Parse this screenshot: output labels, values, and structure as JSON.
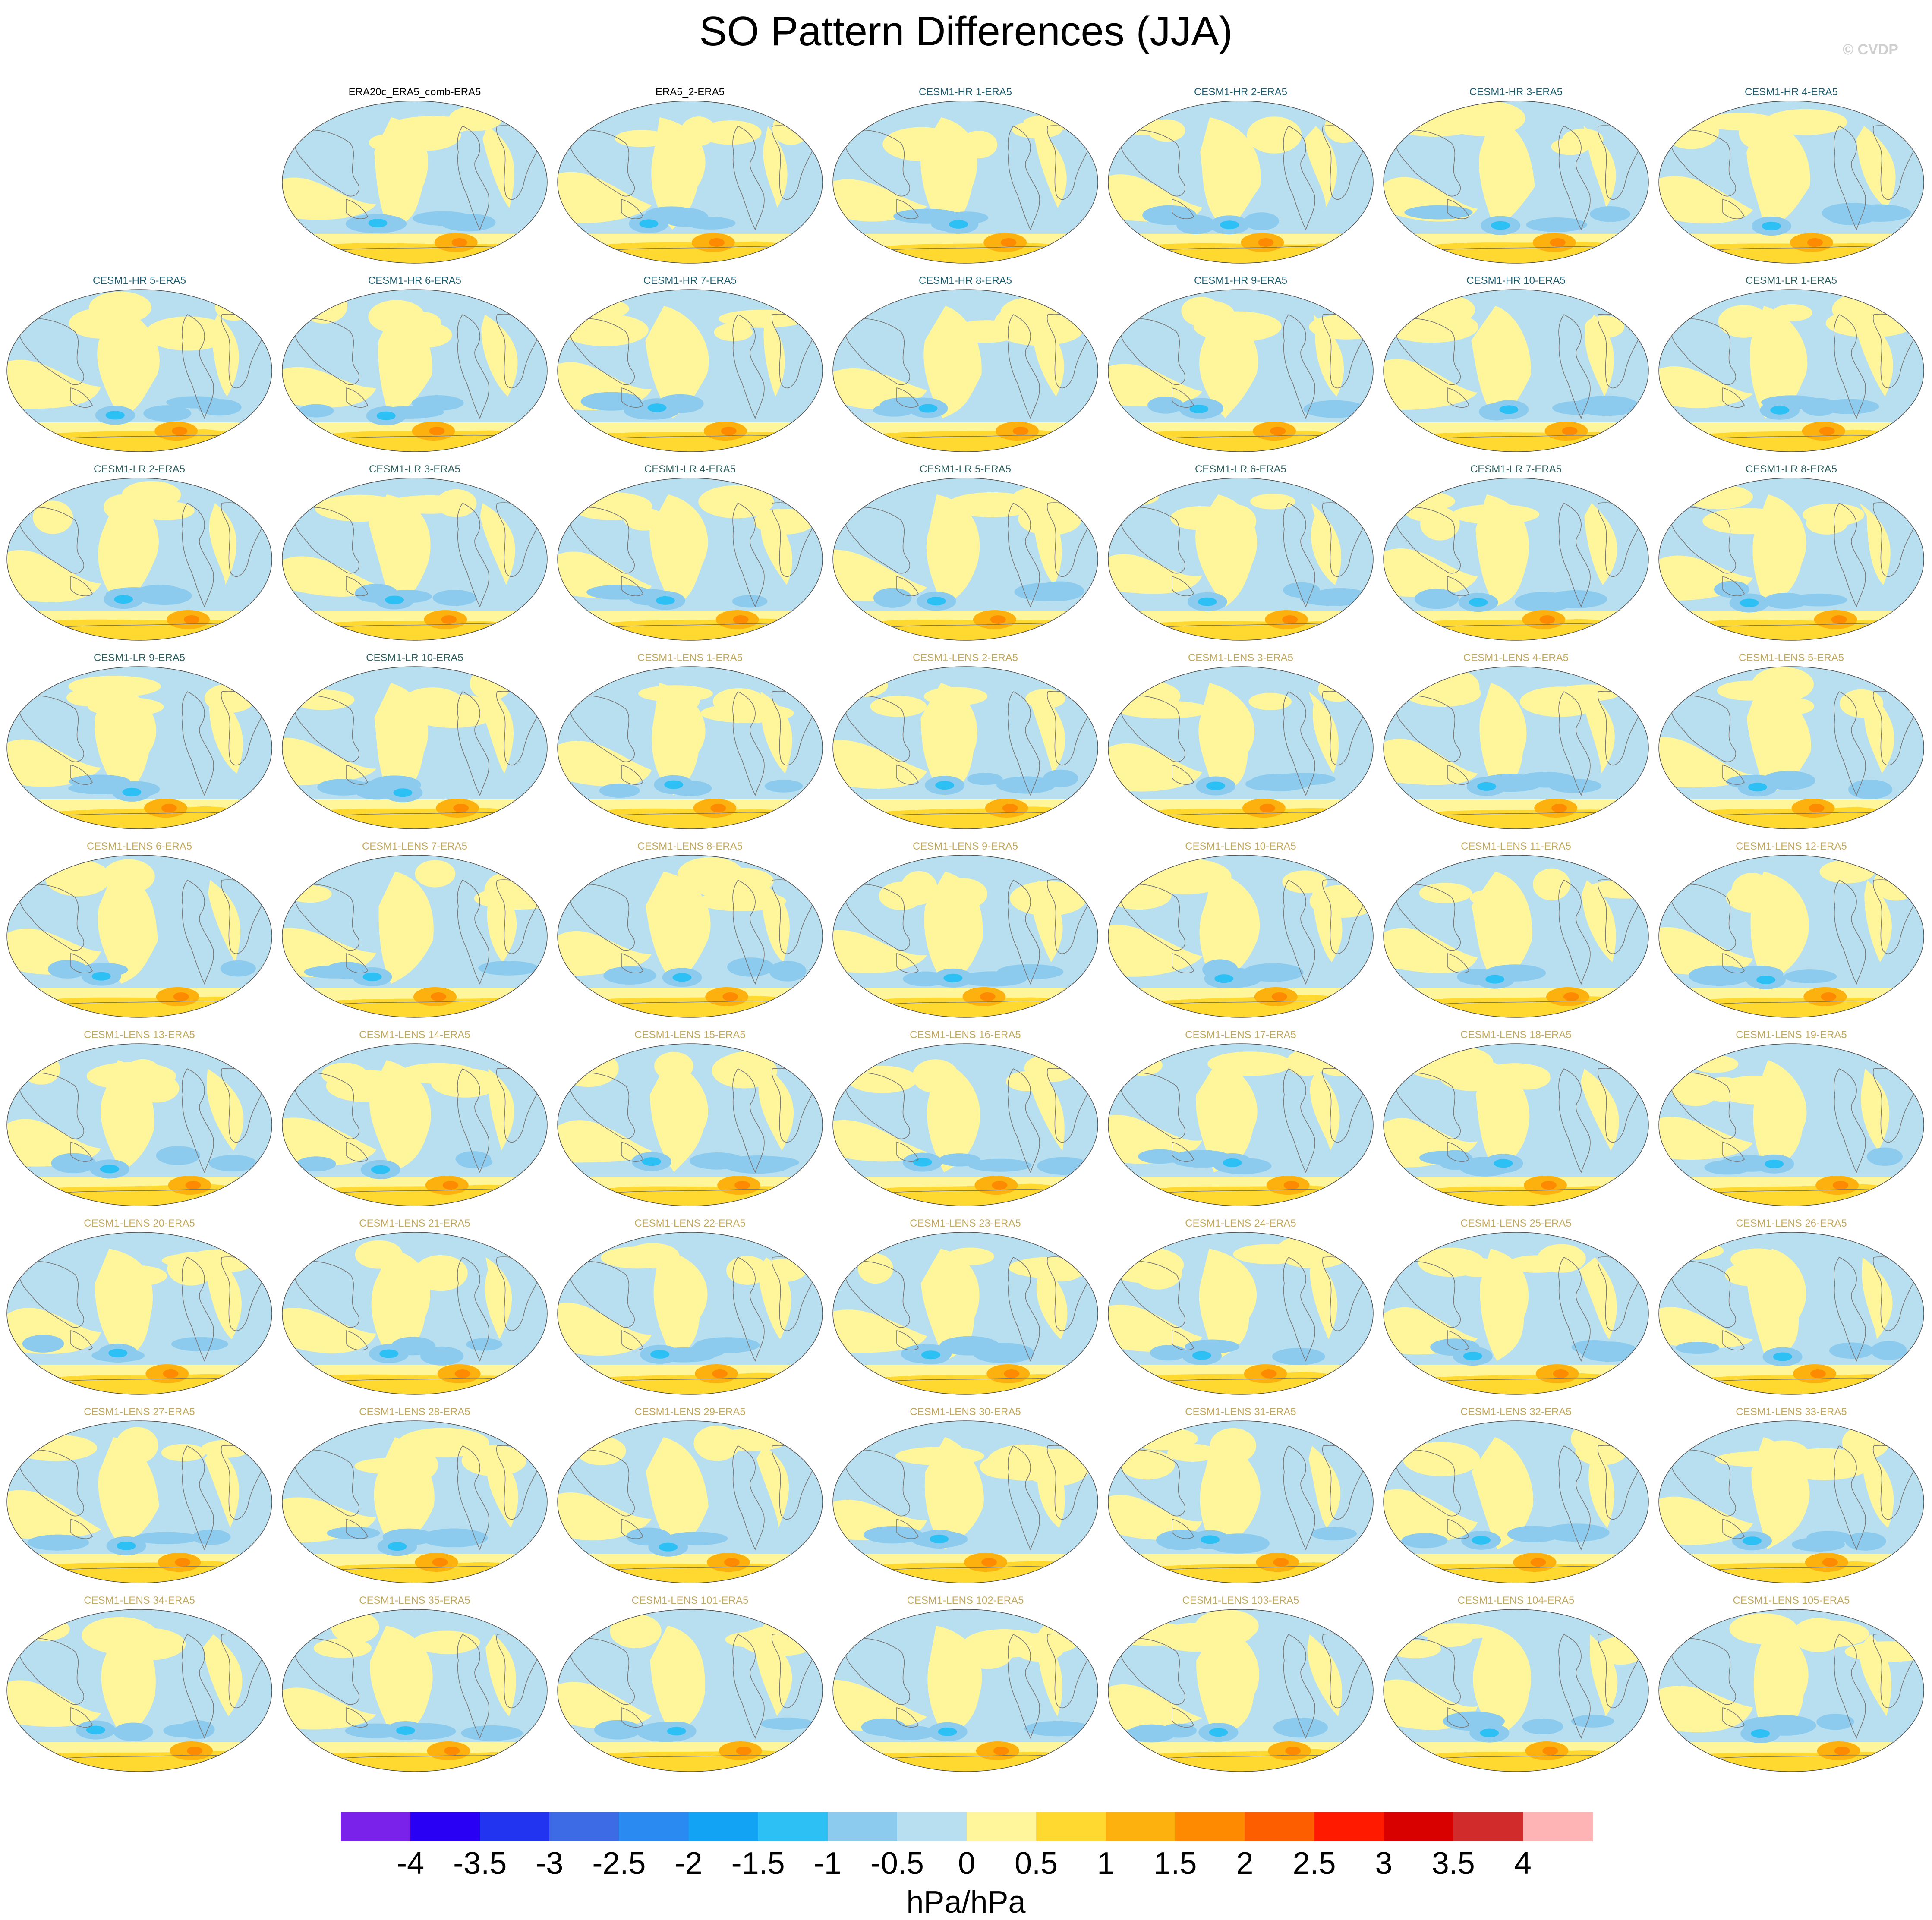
{
  "title": "SO Pattern Differences (JJA)",
  "credit": "© CVDP",
  "units": "hPa/hPa",
  "title_colors": {
    "obs": "#000000",
    "hr": "#1c5a6e",
    "lr": "#2d5e5e",
    "lens": "#c2a85c"
  },
  "panels": [
    {
      "label": "ERA20c_ERA5_comb-ERA5",
      "group": "obs"
    },
    {
      "label": "ERA5_2-ERA5",
      "group": "obs"
    },
    {
      "label": "CESM1-HR 1-ERA5",
      "group": "hr"
    },
    {
      "label": "CESM1-HR 2-ERA5",
      "group": "hr"
    },
    {
      "label": "CESM1-HR 3-ERA5",
      "group": "hr"
    },
    {
      "label": "CESM1-HR 4-ERA5",
      "group": "hr"
    },
    {
      "label": "CESM1-HR 5-ERA5",
      "group": "hr"
    },
    {
      "label": "CESM1-HR 6-ERA5",
      "group": "hr"
    },
    {
      "label": "CESM1-HR 7-ERA5",
      "group": "hr"
    },
    {
      "label": "CESM1-HR 8-ERA5",
      "group": "hr"
    },
    {
      "label": "CESM1-HR 9-ERA5",
      "group": "hr"
    },
    {
      "label": "CESM1-HR 10-ERA5",
      "group": "hr"
    },
    {
      "label": "CESM1-LR 1-ERA5",
      "group": "lr"
    },
    {
      "label": "CESM1-LR 2-ERA5",
      "group": "lr"
    },
    {
      "label": "CESM1-LR 3-ERA5",
      "group": "lr"
    },
    {
      "label": "CESM1-LR 4-ERA5",
      "group": "lr"
    },
    {
      "label": "CESM1-LR 5-ERA5",
      "group": "lr"
    },
    {
      "label": "CESM1-LR 6-ERA5",
      "group": "lr"
    },
    {
      "label": "CESM1-LR 7-ERA5",
      "group": "lr"
    },
    {
      "label": "CESM1-LR 8-ERA5",
      "group": "lr"
    },
    {
      "label": "CESM1-LR 9-ERA5",
      "group": "lr"
    },
    {
      "label": "CESM1-LR 10-ERA5",
      "group": "lr"
    },
    {
      "label": "CESM1-LENS 1-ERA5",
      "group": "lens"
    },
    {
      "label": "CESM1-LENS 2-ERA5",
      "group": "lens"
    },
    {
      "label": "CESM1-LENS 3-ERA5",
      "group": "lens"
    },
    {
      "label": "CESM1-LENS 4-ERA5",
      "group": "lens"
    },
    {
      "label": "CESM1-LENS 5-ERA5",
      "group": "lens"
    },
    {
      "label": "CESM1-LENS 6-ERA5",
      "group": "lens"
    },
    {
      "label": "CESM1-LENS 7-ERA5",
      "group": "lens"
    },
    {
      "label": "CESM1-LENS 8-ERA5",
      "group": "lens"
    },
    {
      "label": "CESM1-LENS 9-ERA5",
      "group": "lens"
    },
    {
      "label": "CESM1-LENS 10-ERA5",
      "group": "lens"
    },
    {
      "label": "CESM1-LENS 11-ERA5",
      "group": "lens"
    },
    {
      "label": "CESM1-LENS 12-ERA5",
      "group": "lens"
    },
    {
      "label": "CESM1-LENS 13-ERA5",
      "group": "lens"
    },
    {
      "label": "CESM1-LENS 14-ERA5",
      "group": "lens"
    },
    {
      "label": "CESM1-LENS 15-ERA5",
      "group": "lens"
    },
    {
      "label": "CESM1-LENS 16-ERA5",
      "group": "lens"
    },
    {
      "label": "CESM1-LENS 17-ERA5",
      "group": "lens"
    },
    {
      "label": "CESM1-LENS 18-ERA5",
      "group": "lens"
    },
    {
      "label": "CESM1-LENS 19-ERA5",
      "group": "lens"
    },
    {
      "label": "CESM1-LENS 20-ERA5",
      "group": "lens"
    },
    {
      "label": "CESM1-LENS 21-ERA5",
      "group": "lens"
    },
    {
      "label": "CESM1-LENS 22-ERA5",
      "group": "lens"
    },
    {
      "label": "CESM1-LENS 23-ERA5",
      "group": "lens"
    },
    {
      "label": "CESM1-LENS 24-ERA5",
      "group": "lens"
    },
    {
      "label": "CESM1-LENS 25-ERA5",
      "group": "lens"
    },
    {
      "label": "CESM1-LENS 26-ERA5",
      "group": "lens"
    },
    {
      "label": "CESM1-LENS 27-ERA5",
      "group": "lens"
    },
    {
      "label": "CESM1-LENS 28-ERA5",
      "group": "lens"
    },
    {
      "label": "CESM1-LENS 29-ERA5",
      "group": "lens"
    },
    {
      "label": "CESM1-LENS 30-ERA5",
      "group": "lens"
    },
    {
      "label": "CESM1-LENS 31-ERA5",
      "group": "lens"
    },
    {
      "label": "CESM1-LENS 32-ERA5",
      "group": "lens"
    },
    {
      "label": "CESM1-LENS 33-ERA5",
      "group": "lens"
    },
    {
      "label": "CESM1-LENS 34-ERA5",
      "group": "lens"
    },
    {
      "label": "CESM1-LENS 35-ERA5",
      "group": "lens"
    },
    {
      "label": "CESM1-LENS 101-ERA5",
      "group": "lens"
    },
    {
      "label": "CESM1-LENS 102-ERA5",
      "group": "lens"
    },
    {
      "label": "CESM1-LENS 103-ERA5",
      "group": "lens"
    },
    {
      "label": "CESM1-LENS 104-ERA5",
      "group": "lens"
    },
    {
      "label": "CESM1-LENS 105-ERA5",
      "group": "lens"
    }
  ],
  "colorbar": {
    "colors": [
      "#7b22ea",
      "#2a00f5",
      "#2234f0",
      "#3d6be6",
      "#2a8af2",
      "#12a3f5",
      "#2cc0f5",
      "#8ccbee",
      "#b7dff0",
      "#fff59b",
      "#ffd92f",
      "#fdb10e",
      "#fd8a00",
      "#fd5e00",
      "#ff1a00",
      "#d90000",
      "#d22b2b",
      "#feb4b4"
    ],
    "ticks": [
      "-4",
      "-3.5",
      "-3",
      "-2.5",
      "-2",
      "-1.5",
      "-1",
      "-0.5",
      "0",
      "0.5",
      "1",
      "1.5",
      "2",
      "2.5",
      "3",
      "3.5",
      "4"
    ]
  },
  "field_colors": {
    "ocean_neg_weak": "#b7dff0",
    "ocean_pos_weak": "#fff59b",
    "neg_mid": "#8ccbee",
    "neg_strong": "#2cc0f5",
    "pos_mid": "#ffd92f",
    "pos_strong": "#fdb10e",
    "pos_max": "#fd8a00",
    "coast": "#7a7a7a"
  }
}
